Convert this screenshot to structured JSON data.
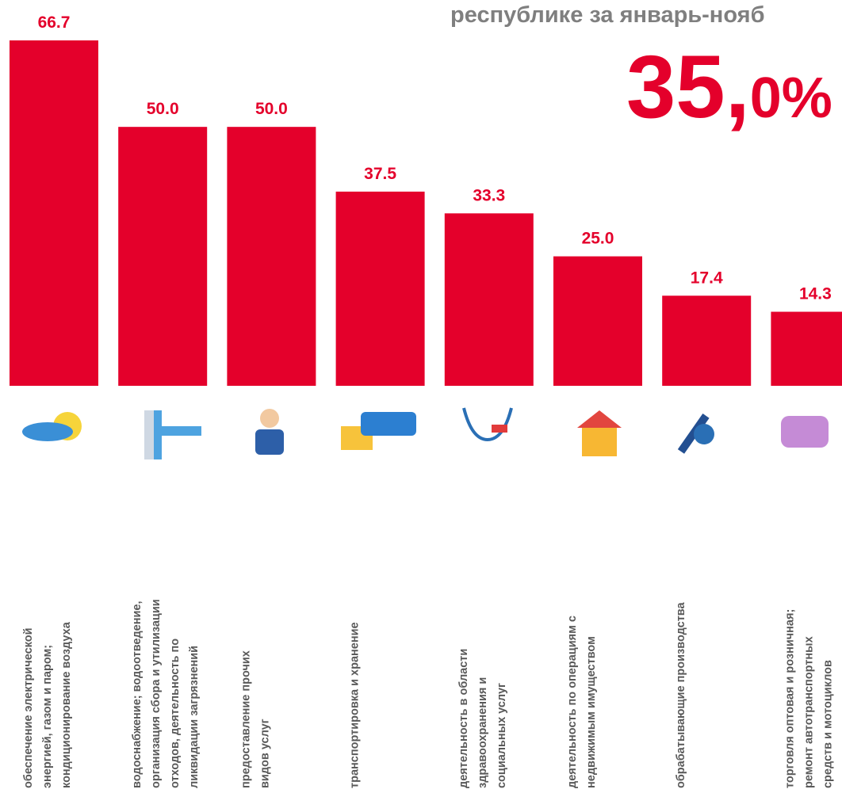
{
  "chart_data": {
    "type": "bar",
    "title": "республике за январь-нояб",
    "annotation_parts": [
      "35,",
      "0%"
    ],
    "color": "#e4002b",
    "categories": [
      [
        "обеспечение электрической",
        "энергией, газом и паром;",
        "кондиционирование  воздуха"
      ],
      [
        "водоснабжение;  водоотведение,",
        "организация сбора и утилизации",
        "отходов, деятельность по",
        "ликвидации загрязнений"
      ],
      [
        "предоставление прочих",
        "видов услуг"
      ],
      [
        "транспортировка и хранение"
      ],
      [
        "деятельность в области",
        "здравоохранения и",
        "социальных услуг"
      ],
      [
        "деятельность по операциям с",
        "недвижимым имуществом"
      ],
      [
        "обрабатывающие  производства"
      ],
      [
        "торговля оптовая и розничная;",
        "ремонт  автотранспортных",
        "средств и мотоциклов"
      ]
    ],
    "values": [
      66.7,
      50,
      50,
      37.5,
      33.3,
      25,
      17.4,
      14.3
    ],
    "value_labels": [
      "66.7",
      "50.0",
      "50.0",
      "37.5",
      "33.3",
      "25.0",
      "17.4",
      "14.3"
    ]
  }
}
